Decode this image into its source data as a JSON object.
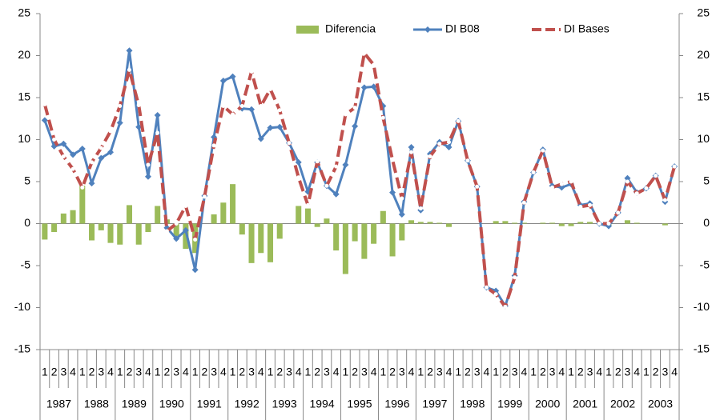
{
  "chart_data": {
    "type": "combo",
    "categories": [
      "1",
      "2",
      "3",
      "4",
      "1",
      "2",
      "3",
      "4",
      "1",
      "2",
      "3",
      "4",
      "1",
      "2",
      "3",
      "4",
      "1",
      "2",
      "3",
      "4",
      "1",
      "2",
      "3",
      "4",
      "1",
      "2",
      "3",
      "4",
      "1",
      "2",
      "3",
      "4",
      "1",
      "2",
      "3",
      "4",
      "1",
      "2",
      "3",
      "4",
      "1",
      "2",
      "3",
      "4",
      "1",
      "2",
      "3",
      "4",
      "1",
      "2",
      "3",
      "4",
      "1",
      "2",
      "3",
      "4",
      "1",
      "2",
      "3",
      "4",
      "1",
      "2",
      "3",
      "4",
      "1",
      "2",
      "3",
      "4"
    ],
    "years": [
      "1987",
      "1988",
      "1989",
      "1990",
      "1991",
      "1992",
      "1993",
      "1994",
      "1995",
      "1996",
      "1997",
      "1998",
      "1999",
      "2000",
      "2001",
      "2002",
      "2003"
    ],
    "series": [
      {
        "name": "Diferencia",
        "type": "bar",
        "color": "#9bbb59",
        "values": [
          -1.9,
          -1,
          1.2,
          1.6,
          4.5,
          -2,
          -0.8,
          -2.3,
          -2.5,
          2.2,
          -2.5,
          -1,
          2.1,
          0.5,
          -1.5,
          -3,
          -3.5,
          0,
          1.1,
          2.5,
          4.7,
          -1.3,
          -4.7,
          -3.5,
          -4.6,
          -1.8,
          0,
          2.1,
          1.8,
          -0.4,
          0.6,
          -3.2,
          -6,
          -2.1,
          -4.2,
          -2.4,
          1.5,
          -3.9,
          -2,
          0.4,
          0.2,
          0.2,
          0.1,
          -0.4,
          0,
          0,
          0,
          0,
          0.3,
          0.3,
          0.1,
          0.1,
          0,
          0.1,
          0.1,
          -0.3,
          -0.3,
          0.2,
          0.2,
          0,
          -0.3,
          0,
          0.4,
          0.1,
          0,
          0,
          -0.2,
          0
        ]
      },
      {
        "name": "DI B08",
        "type": "line",
        "color": "#4f81bd",
        "values": [
          12.3,
          9.2,
          9.5,
          8.2,
          8.9,
          4.8,
          7.8,
          8.5,
          12,
          20.6,
          11.5,
          5.6,
          12.9,
          -0.5,
          -1.8,
          -0.8,
          -5.5,
          3.3,
          10.3,
          17,
          17.5,
          13.7,
          13.6,
          10.1,
          11.4,
          11.5,
          9.6,
          7.3,
          3.8,
          7.3,
          4.5,
          3.5,
          7,
          11.6,
          16.2,
          16.3,
          14,
          3.7,
          1.1,
          9.1,
          1.6,
          8.3,
          9.7,
          9.1,
          12.2,
          7.5,
          4.4,
          -7.6,
          -8,
          -9.8,
          -6.2,
          2.6,
          6.1,
          8.8,
          4.5,
          4.3,
          4.7,
          2.2,
          2.4,
          0,
          -0.3,
          1.3,
          5.4,
          3.7,
          4.2,
          5.7,
          2.6,
          6.8
        ]
      },
      {
        "name": "DI Bases",
        "type": "line",
        "dashed": true,
        "color": "#c0504d",
        "values": [
          14.2,
          10,
          8,
          6.5,
          4.3,
          7.3,
          9,
          11,
          14,
          18.3,
          14.1,
          7,
          10.8,
          -0.9,
          0,
          2.1,
          -1.9,
          3.2,
          9.3,
          14,
          13,
          14,
          18.1,
          14,
          16,
          13.5,
          9.6,
          5.5,
          2.2,
          7.4,
          4.5,
          6.8,
          13,
          13.8,
          20.3,
          18.9,
          12.6,
          7.6,
          3,
          8.5,
          1.8,
          8,
          9.5,
          9.7,
          12.2,
          7.5,
          4.4,
          -7.6,
          -8.4,
          -9.9,
          -6.4,
          2.5,
          6.1,
          8.7,
          4.3,
          4.7,
          5,
          2,
          2.2,
          0,
          0,
          1.3,
          5,
          3.6,
          4.2,
          5.7,
          2.8,
          6.8
        ]
      }
    ],
    "ylim": [
      -15,
      25
    ],
    "yticks": [
      -15,
      -10,
      -5,
      0,
      5,
      10,
      15,
      20,
      25
    ],
    "y2lim": [
      -15,
      25
    ],
    "y2ticks": [
      -15,
      -10,
      -5,
      0,
      5,
      10,
      15,
      20,
      25
    ],
    "legend": "top"
  }
}
